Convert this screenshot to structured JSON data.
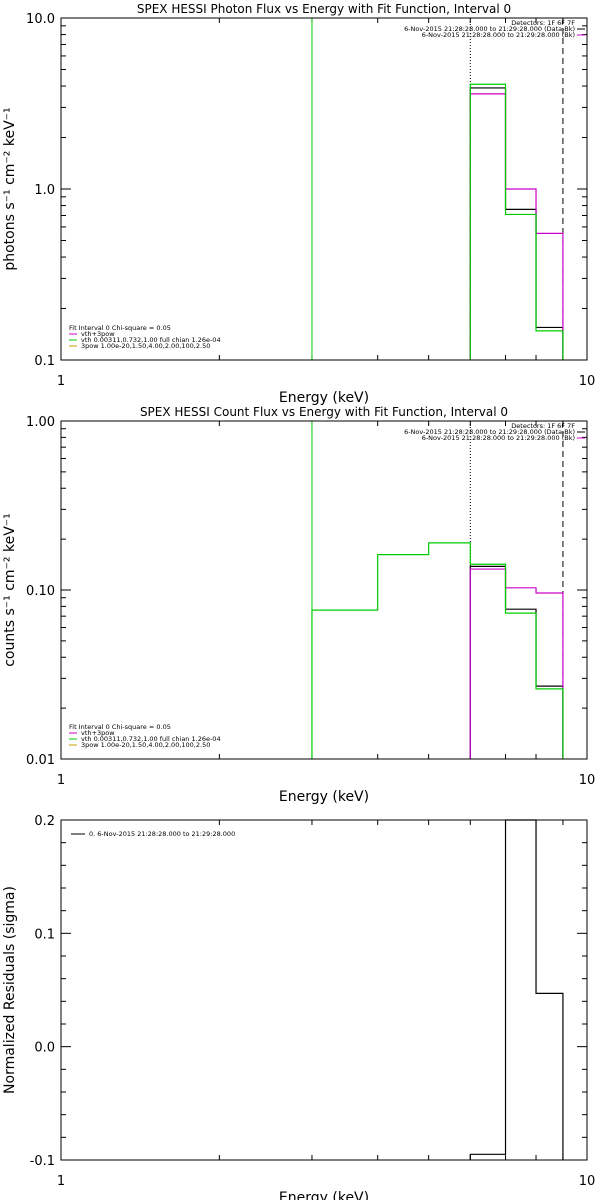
{
  "colors": {
    "black": "#000000",
    "magenta": "#cc00cc",
    "green": "#00cc00",
    "orange": "#cc9900"
  },
  "chart_data": [
    {
      "type": "line",
      "title": "SPEX HESSI Photon Flux vs Energy with Fit Function, Interval 0",
      "xlabel": "Energy (keV)",
      "ylabel": "photons s⁻¹ cm⁻² keV⁻¹",
      "xscale": "log",
      "yscale": "log",
      "xlim": [
        1,
        10
      ],
      "ylim": [
        0.1,
        10
      ],
      "x_ticks": [
        "1",
        "10"
      ],
      "y_ticks": [
        {
          "value": 0.1,
          "label": "0.1"
        },
        {
          "value": 1,
          "label": "1.0"
        },
        {
          "value": 10,
          "label": "10.0"
        }
      ],
      "legend_top_right": [
        {
          "text": "Detectors: 1F 6F 7F",
          "color": ""
        },
        {
          "text": "6-Nov-2015 21:28:28.000 to 21:29:28.000 (Data-Bk)",
          "color": "#000000"
        },
        {
          "text": "6-Nov-2015 21:28:28.000 to 21:29:28.000 (Bk)",
          "color": "#cc00cc"
        }
      ],
      "legend_bottom_left": [
        {
          "text": "Fit Interval 0   Chi-square = 0.05",
          "color": ""
        },
        {
          "text": "vth+3pow",
          "color": "#cc00cc"
        },
        {
          "text": "vth 0.00311,0.732,1.00  full chian 1.26e-04",
          "color": "#00cc00"
        },
        {
          "text": "3pow 1.00e-20,1.50,4.00,2.00,100,2.50",
          "color": "#cc9900"
        }
      ],
      "series": [
        {
          "color": "#000000",
          "bins": [
            [
              6,
              7,
              3.9
            ],
            [
              7,
              8,
              0.76
            ],
            [
              8,
              9,
              0.155
            ]
          ]
        },
        {
          "color": "#cc00cc",
          "bins": [
            [
              6,
              7,
              3.6
            ],
            [
              7,
              8,
              1.0
            ],
            [
              8,
              9,
              0.55
            ]
          ]
        },
        {
          "color": "#00cc00",
          "bins": [
            [
              6,
              7,
              4.1
            ],
            [
              7,
              8,
              0.71
            ],
            [
              8,
              9,
              0.148
            ]
          ]
        }
      ],
      "vlines": [
        {
          "x": 3.0,
          "color": "#00cc00",
          "style": "solid"
        },
        {
          "x": 6.0,
          "color": "#000000",
          "style": "dotted"
        },
        {
          "x": 9.0,
          "color": "#000000",
          "style": "dashed"
        }
      ]
    },
    {
      "type": "line",
      "title": "SPEX HESSI Count Flux vs Energy with Fit Function, Interval 0",
      "xlabel": "Energy (keV)",
      "ylabel": "counts s⁻¹ cm⁻² keV⁻¹",
      "xscale": "log",
      "yscale": "log",
      "xlim": [
        1,
        10
      ],
      "ylim": [
        0.01,
        1
      ],
      "x_ticks": [
        "1",
        "10"
      ],
      "y_ticks": [
        {
          "value": 0.01,
          "label": "0.01"
        },
        {
          "value": 0.1,
          "label": "0.10"
        },
        {
          "value": 1,
          "label": "1.00"
        }
      ],
      "legend_top_right": [
        {
          "text": "Detectors: 1F 6F 7F",
          "color": ""
        },
        {
          "text": "6-Nov-2015 21:28:28.000 to 21:29:28.000 (Data-Bk)",
          "color": "#000000"
        },
        {
          "text": "6-Nov-2015 21:28:28.000 to 21:29:28.000 (Bk)",
          "color": "#cc00cc"
        }
      ],
      "legend_bottom_left": [
        {
          "text": "Fit Interval 0   Chi-square = 0.05",
          "color": ""
        },
        {
          "text": "vth+3pow",
          "color": "#cc00cc"
        },
        {
          "text": "vth 0.00311,0.732,1.00  full chian 1.26e-04",
          "color": "#00cc00"
        },
        {
          "text": "3pow 1.00e-20,1.50,4.00,2.00,100,2.50",
          "color": "#cc9900"
        }
      ],
      "series": [
        {
          "color": "#000000",
          "bins": [
            [
              6,
              7,
              0.138
            ],
            [
              7,
              8,
              0.077
            ],
            [
              8,
              9,
              0.027
            ]
          ]
        },
        {
          "color": "#cc00cc",
          "bins": [
            [
              6,
              7,
              0.133
            ],
            [
              7,
              8,
              0.103
            ],
            [
              8,
              9,
              0.096
            ]
          ]
        },
        {
          "color": "#00cc00",
          "bins": [
            [
              3,
              4,
              0.076
            ],
            [
              4,
              5,
              0.162
            ],
            [
              5,
              6,
              0.19
            ],
            [
              6,
              7,
              0.142
            ],
            [
              7,
              8,
              0.073
            ],
            [
              8,
              9,
              0.026
            ]
          ]
        }
      ],
      "vlines": [
        {
          "x": 3.0,
          "color": "#00cc00",
          "style": "solid"
        },
        {
          "x": 6.0,
          "color": "#000000",
          "style": "dotted"
        },
        {
          "x": 9.0,
          "color": "#000000",
          "style": "dashed"
        }
      ]
    },
    {
      "type": "line",
      "title": "",
      "xlabel": "Energy (keV)",
      "ylabel": "Normalized Residuals (sigma)",
      "xscale": "log",
      "yscale": "linear",
      "xlim": [
        1,
        10
      ],
      "ylim": [
        -0.1,
        0.2
      ],
      "x_ticks": [
        "1",
        "10"
      ],
      "y_ticks": [
        {
          "value": -0.1,
          "label": "-0.1"
        },
        {
          "value": 0.0,
          "label": "0.0"
        },
        {
          "value": 0.1,
          "label": "0.1"
        },
        {
          "value": 0.2,
          "label": "0.2"
        }
      ],
      "legend_top_left": [
        {
          "text": "0.  6-Nov-2015 21:28:28.000 to 21:29:28.000",
          "color": "#000000"
        }
      ],
      "series": [
        {
          "color": "#000000",
          "bins": [
            [
              6,
              7,
              -0.095
            ],
            [
              7,
              8,
              0.2
            ],
            [
              8,
              9,
              0.047
            ]
          ]
        }
      ],
      "vlines": []
    }
  ]
}
